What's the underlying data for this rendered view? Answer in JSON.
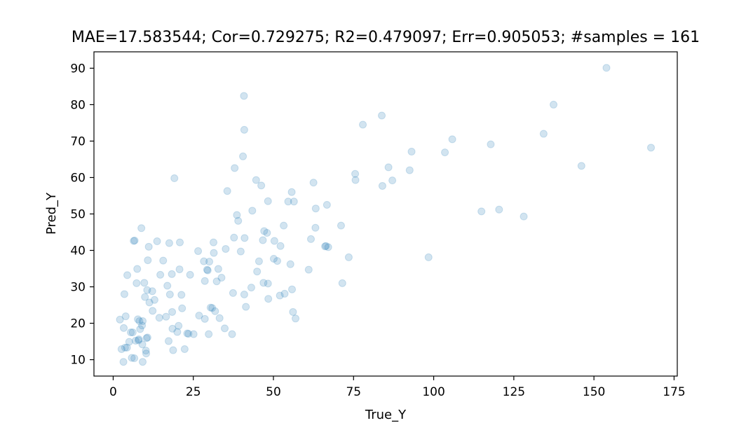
{
  "chart_data": {
    "type": "scatter",
    "title": "MAE=17.583544; Cor=0.729275; R2=0.479097; Err=0.905053; #samples = 161",
    "xlabel": "True_Y",
    "ylabel": "Pred_Y",
    "xlim": [
      -6,
      176
    ],
    "ylim": [
      5.5,
      94.5
    ],
    "xticks": [
      0,
      25,
      50,
      75,
      100,
      125,
      150,
      175
    ],
    "yticks": [
      10,
      20,
      30,
      40,
      50,
      60,
      70,
      80,
      90
    ],
    "grid": false,
    "point_color": "#1f77b4",
    "point_alpha": 0.2,
    "points": [
      [
        2.1,
        21.0
      ],
      [
        2.6,
        12.9
      ],
      [
        3.2,
        9.4
      ],
      [
        3.3,
        18.7
      ],
      [
        3.5,
        28.0
      ],
      [
        3.7,
        13.3
      ],
      [
        3.9,
        21.9
      ],
      [
        4.3,
        13.3
      ],
      [
        4.4,
        33.2
      ],
      [
        5.0,
        14.9
      ],
      [
        5.5,
        17.5
      ],
      [
        5.8,
        10.5
      ],
      [
        6.1,
        17.5
      ],
      [
        6.4,
        42.6
      ],
      [
        6.6,
        10.4
      ],
      [
        6.7,
        42.7
      ],
      [
        7.0,
        15.2
      ],
      [
        7.3,
        31.0
      ],
      [
        7.5,
        34.9
      ],
      [
        7.7,
        21.1
      ],
      [
        7.9,
        15.3
      ],
      [
        8.0,
        15.6
      ],
      [
        8.2,
        20.6
      ],
      [
        8.4,
        18.4
      ],
      [
        8.8,
        46.1
      ],
      [
        9.0,
        19.4
      ],
      [
        9.1,
        14.2
      ],
      [
        9.2,
        20.6
      ],
      [
        9.2,
        9.4
      ],
      [
        9.7,
        31.1
      ],
      [
        9.9,
        27.2
      ],
      [
        10.2,
        12.5
      ],
      [
        10.3,
        11.7
      ],
      [
        10.4,
        15.9
      ],
      [
        10.6,
        29.1
      ],
      [
        10.7,
        16.1
      ],
      [
        10.8,
        37.3
      ],
      [
        11.1,
        41.0
      ],
      [
        11.3,
        25.7
      ],
      [
        12.2,
        28.8
      ],
      [
        12.3,
        23.4
      ],
      [
        12.9,
        26.4
      ],
      [
        13.7,
        42.5
      ],
      [
        14.4,
        21.5
      ],
      [
        14.7,
        33.3
      ],
      [
        15.6,
        37.2
      ],
      [
        16.5,
        21.8
      ],
      [
        16.9,
        30.3
      ],
      [
        17.3,
        15.1
      ],
      [
        17.5,
        42.0
      ],
      [
        17.7,
        27.9
      ],
      [
        18.3,
        33.5
      ],
      [
        18.4,
        23.1
      ],
      [
        18.5,
        18.5
      ],
      [
        18.7,
        12.6
      ],
      [
        19.1,
        59.8
      ],
      [
        20.0,
        17.6
      ],
      [
        20.4,
        19.3
      ],
      [
        20.7,
        34.8
      ],
      [
        20.8,
        42.2
      ],
      [
        21.3,
        27.8
      ],
      [
        21.5,
        24.1
      ],
      [
        22.3,
        12.9
      ],
      [
        23.1,
        17.2
      ],
      [
        23.5,
        17.1
      ],
      [
        24.0,
        33.3
      ],
      [
        25.1,
        17.0
      ],
      [
        26.5,
        39.8
      ],
      [
        26.8,
        22.1
      ],
      [
        28.3,
        37.0
      ],
      [
        28.6,
        21.2
      ],
      [
        28.6,
        31.6
      ],
      [
        29.3,
        34.7
      ],
      [
        29.5,
        34.5
      ],
      [
        29.8,
        17.0
      ],
      [
        30.0,
        36.9
      ],
      [
        30.4,
        24.3
      ],
      [
        30.9,
        24.2
      ],
      [
        31.3,
        42.2
      ],
      [
        31.4,
        39.3
      ],
      [
        31.8,
        23.3
      ],
      [
        32.3,
        31.5
      ],
      [
        32.8,
        34.9
      ],
      [
        33.2,
        21.4
      ],
      [
        33.8,
        32.5
      ],
      [
        34.8,
        18.6
      ],
      [
        35.1,
        40.4
      ],
      [
        35.6,
        56.3
      ],
      [
        37.1,
        17.0
      ],
      [
        37.4,
        28.3
      ],
      [
        37.7,
        43.5
      ],
      [
        37.9,
        62.6
      ],
      [
        38.6,
        49.7
      ],
      [
        39.0,
        48.1
      ],
      [
        39.8,
        39.7
      ],
      [
        40.5,
        65.8
      ],
      [
        40.8,
        82.4
      ],
      [
        40.9,
        73.1
      ],
      [
        40.9,
        27.9
      ],
      [
        41.0,
        43.4
      ],
      [
        41.4,
        24.5
      ],
      [
        43.1,
        29.8
      ],
      [
        43.4,
        50.9
      ],
      [
        44.6,
        59.3
      ],
      [
        44.9,
        34.2
      ],
      [
        45.5,
        37.0
      ],
      [
        46.2,
        57.8
      ],
      [
        46.7,
        42.8
      ],
      [
        46.9,
        31.1
      ],
      [
        47.1,
        45.3
      ],
      [
        48.0,
        44.8
      ],
      [
        48.3,
        30.9
      ],
      [
        48.3,
        53.5
      ],
      [
        48.4,
        26.7
      ],
      [
        50.1,
        37.7
      ],
      [
        50.3,
        42.6
      ],
      [
        51.2,
        37.1
      ],
      [
        52.0,
        27.6
      ],
      [
        52.2,
        41.2
      ],
      [
        53.2,
        46.8
      ],
      [
        53.5,
        28.1
      ],
      [
        54.6,
        53.4
      ],
      [
        55.3,
        36.2
      ],
      [
        55.7,
        56.0
      ],
      [
        55.8,
        29.3
      ],
      [
        56.1,
        23.1
      ],
      [
        56.4,
        53.4
      ],
      [
        56.9,
        21.3
      ],
      [
        61.0,
        34.7
      ],
      [
        61.7,
        43.1
      ],
      [
        62.5,
        58.6
      ],
      [
        63.1,
        46.2
      ],
      [
        63.2,
        51.5
      ],
      [
        66.1,
        41.1
      ],
      [
        66.4,
        41.2
      ],
      [
        66.7,
        52.5
      ],
      [
        67.1,
        40.9
      ],
      [
        71.1,
        46.8
      ],
      [
        71.5,
        31.0
      ],
      [
        73.5,
        38.1
      ],
      [
        75.5,
        61.0
      ],
      [
        75.6,
        59.3
      ],
      [
        77.9,
        74.5
      ],
      [
        83.8,
        77.0
      ],
      [
        84.0,
        57.7
      ],
      [
        85.9,
        62.8
      ],
      [
        87.1,
        59.2
      ],
      [
        92.5,
        62.0
      ],
      [
        93.1,
        67.1
      ],
      [
        98.4,
        38.1
      ],
      [
        103.5,
        66.9
      ],
      [
        105.8,
        70.5
      ],
      [
        114.9,
        50.7
      ],
      [
        117.8,
        69.1
      ],
      [
        120.4,
        51.2
      ],
      [
        128.1,
        49.3
      ],
      [
        134.3,
        72.0
      ],
      [
        137.4,
        80.0
      ],
      [
        146.1,
        63.2
      ],
      [
        153.9,
        90.1
      ],
      [
        167.8,
        68.2
      ]
    ]
  }
}
